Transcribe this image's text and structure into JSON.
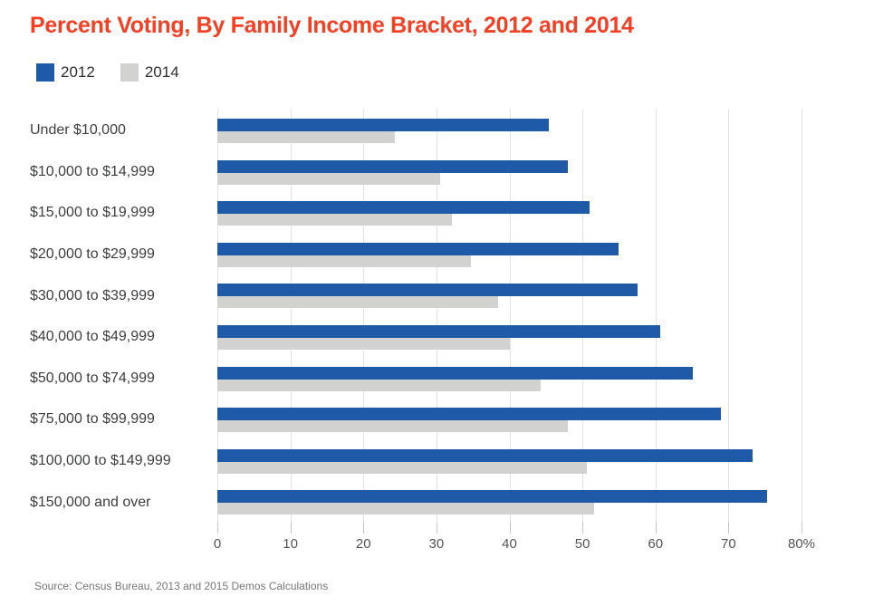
{
  "colors": {
    "title": "#f63e23",
    "bar_2012": "#1e5aa8",
    "bar_2014": "#d2d2d0",
    "gridline": "#e2e2e2",
    "axis_text": "#545457",
    "category_text": "#3c3d3f",
    "source_text": "#747679",
    "background": "#ffffff"
  },
  "source": "Source: Census Bureau, 2013 and 2015 Demos Calculations",
  "chart_data": {
    "type": "bar",
    "orientation": "horizontal",
    "title": "Percent Voting, By Family Income Bracket, 2012 and 2014",
    "categories": [
      "Under $10,000",
      "$10,000 to $14,999",
      "$15,000 to $19,999",
      "$20,000 to $29,999",
      "$30,000 to $39,999",
      "$40,000 to $49,999",
      "$50,000 to $74,999",
      "$75,000 to $99,999",
      "$100,000 to $149,999",
      "$150,000 and over"
    ],
    "series": [
      {
        "name": "2012",
        "color": "#1e5aa8",
        "values": [
          45.4,
          48.0,
          51.0,
          54.9,
          57.6,
          60.6,
          65.1,
          68.9,
          73.3,
          75.3
        ]
      },
      {
        "name": "2014",
        "color": "#d2d2d0",
        "values": [
          24.3,
          30.5,
          32.1,
          34.7,
          38.4,
          40.0,
          44.3,
          48.0,
          50.6,
          51.6
        ]
      }
    ],
    "xlabel": "",
    "ylabel": "",
    "xlim": [
      0,
      80
    ],
    "xticks": [
      0,
      10,
      20,
      30,
      40,
      50,
      60,
      70,
      80
    ],
    "xtick_labels": [
      "0",
      "10",
      "20",
      "30",
      "40",
      "50",
      "60",
      "70",
      "80%"
    ],
    "grid": true,
    "legend_position": "top-left",
    "unit": "percent"
  }
}
